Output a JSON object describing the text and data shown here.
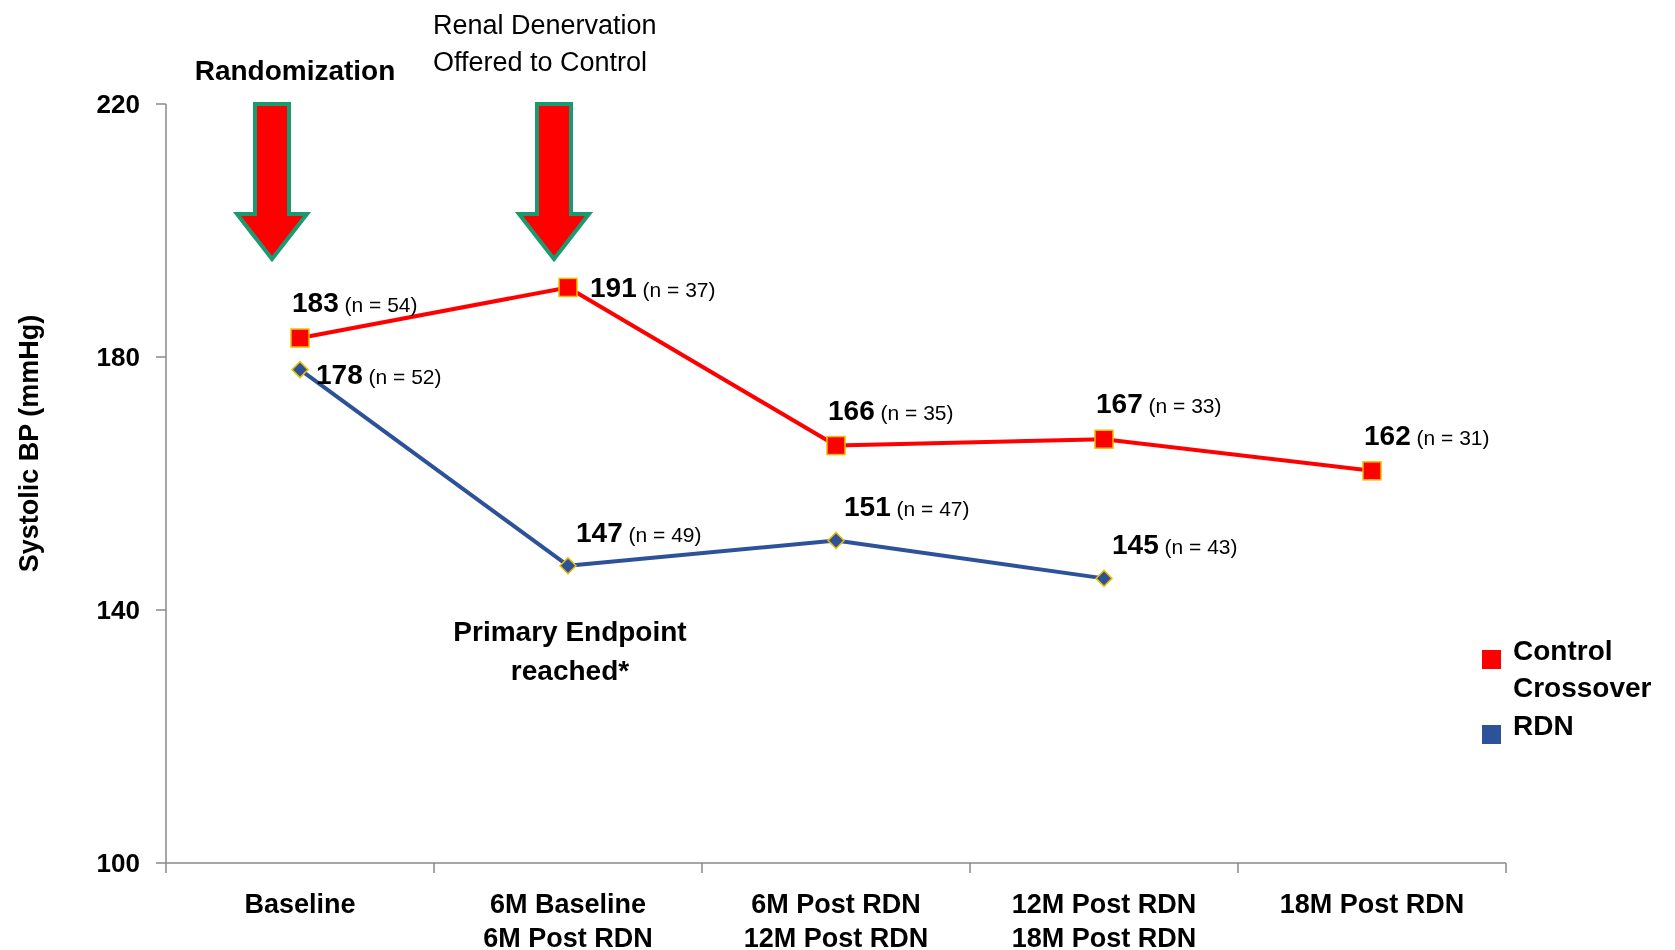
{
  "chart_data": {
    "type": "line",
    "ylabel": "Systolic BP (mmHg)",
    "categories": [
      "Baseline",
      "6M Baseline\n6M Post RDN",
      "6M Post RDN\n12M Post RDN",
      "12M Post RDN\n18M Post RDN",
      "18M Post RDN"
    ],
    "series": [
      {
        "name": "Control Crossover",
        "color": "#ff0000",
        "marker": "square",
        "values": [
          183,
          191,
          166,
          167,
          162
        ],
        "value_labels": [
          "183 (n = 54)",
          "191 (n = 37)",
          "166 (n = 35)",
          "167 (n = 33)",
          "162 (n = 31)"
        ]
      },
      {
        "name": "RDN",
        "color": "#2e5299",
        "marker": "diamond",
        "values": [
          178,
          147,
          151,
          145,
          null
        ],
        "value_labels": [
          "178 (n = 52)",
          "147 (n = 49)",
          "151 (n = 47)",
          "145 (n = 43)",
          null
        ]
      }
    ],
    "ylim": [
      100,
      220
    ],
    "yticks": [
      100,
      140,
      180,
      220
    ],
    "legend": "right",
    "grid": false,
    "annotations": [
      "Randomization",
      "Renal Denervation\nOffered to Control",
      "Primary Endpoint\nreached*"
    ]
  }
}
